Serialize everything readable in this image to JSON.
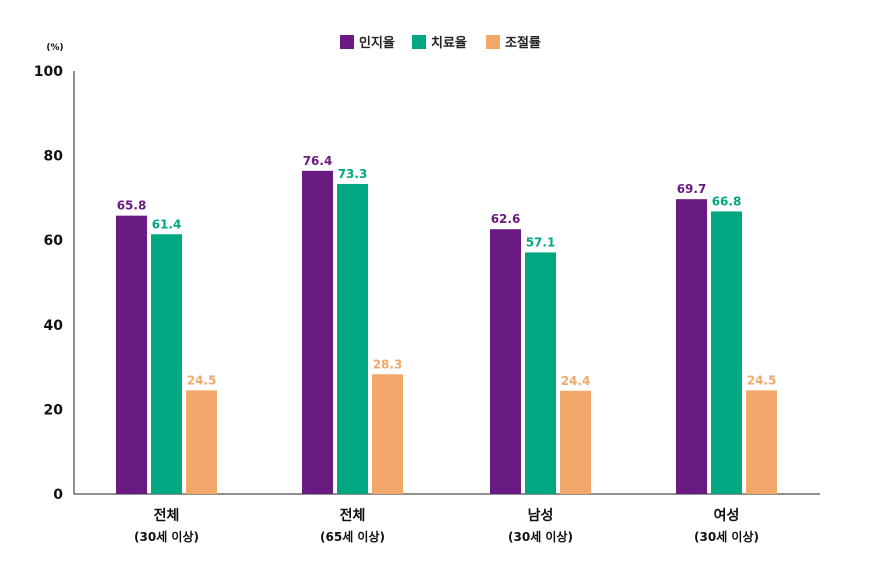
{
  "chart_data": {
    "type": "bar",
    "unit": "(%)",
    "ylim": [
      0,
      100
    ],
    "yticks": [
      0,
      20,
      40,
      60,
      80,
      100
    ],
    "legend_position": "top-center",
    "categories": [
      {
        "name": "전체",
        "sub": "(30세 이상)"
      },
      {
        "name": "전체",
        "sub": "(65세 이상)"
      },
      {
        "name": "남성",
        "sub": "(30세 이상)"
      },
      {
        "name": "여성",
        "sub": "(30세 이상)"
      }
    ],
    "series": [
      {
        "name": "인지율",
        "color": "#6a1b82",
        "values": [
          65.8,
          76.4,
          62.6,
          69.7
        ]
      },
      {
        "name": "치료율",
        "color": "#00a882",
        "values": [
          61.4,
          73.3,
          57.1,
          66.8
        ]
      },
      {
        "name": "조절률",
        "color": "#f3a86b",
        "values": [
          24.5,
          28.3,
          24.4,
          24.5
        ]
      }
    ]
  }
}
